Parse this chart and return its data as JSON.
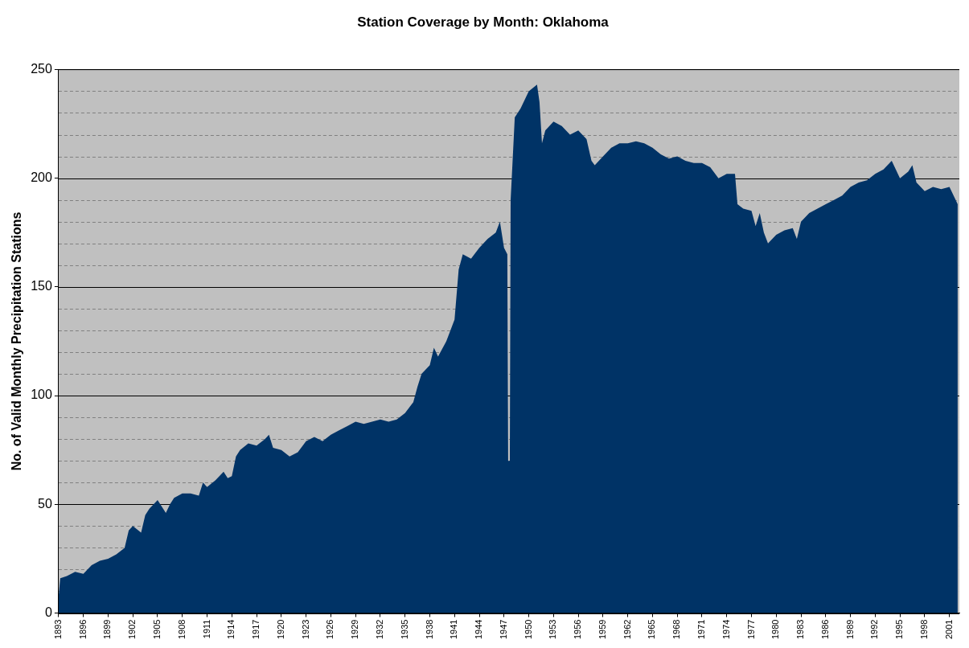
{
  "chart_data": {
    "type": "area",
    "title": "Station Coverage by Month: Oklahoma",
    "ylabel": "No. of Valid Monthly Precipitation Stations",
    "x": [
      1893,
      1893.2,
      1894,
      1895,
      1896,
      1897,
      1898,
      1899,
      1900,
      1901,
      1901.5,
      1902,
      1903,
      1903.5,
      1904,
      1905,
      1906,
      1906.5,
      1907,
      1908,
      1909,
      1910,
      1910.5,
      1911,
      1912,
      1913,
      1913.5,
      1914,
      1914.5,
      1915,
      1916,
      1917,
      1918,
      1918.5,
      1919,
      1920,
      1921,
      1922,
      1923,
      1924,
      1925,
      1926,
      1927,
      1928,
      1929,
      1930,
      1931,
      1932,
      1933,
      1934,
      1935,
      1936,
      1936.5,
      1937,
      1938,
      1938.5,
      1939,
      1940,
      1941,
      1941.5,
      1942,
      1943,
      1944,
      1945,
      1946,
      1946.5,
      1947,
      1947.4,
      1947.5,
      1947.7,
      1947.8,
      1948,
      1948.3,
      1949,
      1950,
      1951,
      1951.3,
      1951.6,
      1952,
      1953,
      1954,
      1955,
      1956,
      1957,
      1957.6,
      1958,
      1959,
      1960,
      1961,
      1962,
      1963,
      1964,
      1965,
      1966,
      1967,
      1968,
      1969,
      1970,
      1971,
      1972,
      1973,
      1974,
      1975,
      1975.3,
      1976,
      1977,
      1977.5,
      1978,
      1978.5,
      1979,
      1980,
      1981,
      1982,
      1982.5,
      1983,
      1984,
      1985,
      1986,
      1987,
      1988,
      1989,
      1990,
      1991,
      1992,
      1993,
      1994,
      1995,
      1996,
      1996.5,
      1997,
      1998,
      1999,
      2000,
      2001,
      2002
    ],
    "series": [
      {
        "color": "#003366",
        "values": [
          8,
          16,
          17,
          19,
          18,
          22,
          24,
          25,
          27,
          30,
          38,
          40,
          37,
          45,
          48,
          52,
          46,
          50,
          53,
          55,
          55,
          54,
          60,
          58,
          61,
          65,
          62,
          63,
          72,
          75,
          78,
          77,
          80,
          82,
          76,
          75,
          72,
          74,
          79,
          81,
          79,
          82,
          84,
          86,
          88,
          87,
          88,
          89,
          88,
          89,
          92,
          97,
          104,
          110,
          114,
          122,
          118,
          125,
          135,
          158,
          165,
          163,
          168,
          172,
          175,
          180,
          168,
          165,
          70,
          70,
          190,
          205,
          228,
          232,
          240,
          243,
          235,
          216,
          222,
          226,
          224,
          220,
          222,
          218,
          208,
          206,
          210,
          214,
          216,
          216,
          217,
          216,
          214,
          211,
          209,
          210,
          208,
          207,
          207,
          205,
          200,
          202,
          202,
          188,
          186,
          185,
          178,
          184,
          175,
          170,
          174,
          176,
          177,
          172,
          180,
          184,
          186,
          188,
          190,
          192,
          196,
          198,
          199,
          202,
          204,
          208,
          200,
          203,
          206,
          198,
          194,
          196,
          195,
          196,
          188
        ]
      }
    ],
    "xlim": [
      1893,
      2002.2
    ],
    "xticks": [
      1893,
      1896,
      1899,
      1902,
      1905,
      1908,
      1911,
      1914,
      1917,
      1920,
      1923,
      1926,
      1929,
      1932,
      1935,
      1938,
      1941,
      1944,
      1947,
      1950,
      1953,
      1956,
      1959,
      1962,
      1965,
      1968,
      1971,
      1974,
      1977,
      1980,
      1983,
      1986,
      1989,
      1992,
      1995,
      1998,
      2001
    ],
    "ylim": [
      0,
      250
    ],
    "yticks": [
      0,
      {
        "value": 10,
        "label": null
      },
      {
        "value": 20,
        "label": null
      },
      {
        "value": 30,
        "label": null
      },
      {
        "value": 40,
        "label": null
      },
      50,
      {
        "value": 60,
        "label": null
      },
      {
        "value": 70,
        "label": null
      },
      {
        "value": 80,
        "label": null
      },
      {
        "value": 90,
        "label": null
      },
      100,
      {
        "value": 110,
        "label": null
      },
      {
        "value": 120,
        "label": null
      },
      {
        "value": 130,
        "label": null
      },
      {
        "value": 140,
        "label": null
      },
      150,
      {
        "value": 160,
        "label": null
      },
      {
        "value": 170,
        "label": null
      },
      {
        "value": 180,
        "label": null
      },
      {
        "value": 190,
        "label": null
      },
      200,
      {
        "value": 210,
        "label": null
      },
      {
        "value": 220,
        "label": null
      },
      {
        "value": 230,
        "label": null
      },
      {
        "value": 240,
        "label": null
      },
      250
    ],
    "grid": "y",
    "legend": false,
    "marker": "none"
  }
}
